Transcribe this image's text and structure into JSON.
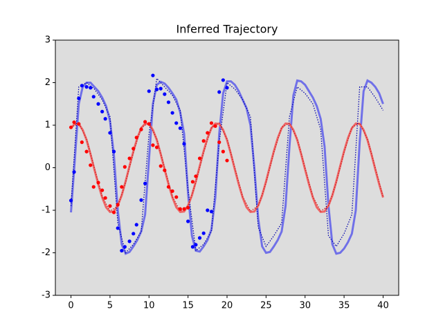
{
  "chart_data": {
    "type": "line",
    "title": "Inferred Trajectory",
    "xlim": [
      -2,
      42
    ],
    "ylim": [
      -3,
      3
    ],
    "xticks": [
      0,
      5,
      10,
      15,
      20,
      25,
      30,
      35,
      40
    ],
    "yticks": [
      -3,
      -2,
      -1,
      0,
      1,
      2,
      3
    ],
    "background": "#dddddd",
    "series": [
      {
        "style": "line",
        "color": "#7070e8",
        "x": [
          0,
          0.5,
          1,
          1.5,
          2,
          2.5,
          3,
          3.5,
          4,
          4.5,
          5,
          5.5,
          6,
          6.5,
          7,
          7.5,
          8,
          8.5,
          9,
          9.5,
          10,
          10.5,
          11,
          11.5,
          12,
          12.5,
          13,
          13.5,
          14,
          14.5,
          15,
          15.5,
          16,
          16.5,
          17,
          17.5,
          18,
          18.5,
          19,
          19.5,
          20,
          20.5,
          21,
          21.5,
          22,
          22.5,
          23,
          23.5,
          24,
          24.5,
          25,
          25.5,
          26,
          26.5,
          27,
          27.5,
          28,
          28.5,
          29,
          29.5,
          30,
          30.5,
          31,
          31.5,
          32,
          32.5,
          33,
          33.5,
          34,
          34.5,
          35,
          35.5,
          36,
          36.5,
          37,
          37.5,
          38,
          38.5,
          39,
          39.5,
          40
        ],
        "values": [
          -1.05,
          0.2,
          1.5,
          1.9,
          2.0,
          2.0,
          1.9,
          1.8,
          1.65,
          1.45,
          1.1,
          0.3,
          -1.0,
          -1.8,
          -2.02,
          -1.98,
          -1.85,
          -1.7,
          -1.5,
          -1.1,
          0.2,
          1.5,
          1.95,
          2.02,
          1.98,
          1.88,
          1.75,
          1.6,
          1.3,
          0.8,
          -0.6,
          -1.6,
          -1.95,
          -1.97,
          -1.85,
          -1.7,
          -1.45,
          -0.7,
          0.8,
          1.75,
          2.03,
          2.03,
          1.95,
          1.8,
          1.6,
          1.4,
          1.0,
          0.0,
          -1.2,
          -1.85,
          -2.0,
          -1.98,
          -1.85,
          -1.7,
          -1.5,
          -0.9,
          0.5,
          1.7,
          2.05,
          2.03,
          1.95,
          1.8,
          1.65,
          1.45,
          1.15,
          0.5,
          -0.9,
          -1.8,
          -2.02,
          -2.0,
          -1.9,
          -1.75,
          -1.55,
          -1.0,
          0.6,
          1.8,
          2.05,
          2.0,
          1.9,
          1.75,
          1.5
        ]
      },
      {
        "style": "line",
        "color": "#ee6666",
        "x": [
          0,
          0.5,
          1,
          1.5,
          2,
          2.5,
          3,
          3.5,
          4,
          4.5,
          5,
          5.5,
          6,
          6.5,
          7,
          7.5,
          8,
          8.5,
          9,
          9.5,
          10,
          10.5,
          11,
          11.5,
          12,
          12.5,
          13,
          13.5,
          14,
          14.5,
          15,
          15.5,
          16,
          16.5,
          17,
          17.5,
          18,
          18.5,
          19,
          19.5,
          20,
          20.5,
          21,
          21.5,
          22,
          22.5,
          23,
          23.5,
          24,
          24.5,
          25,
          25.5,
          26,
          26.5,
          27,
          27.5,
          28,
          28.5,
          29,
          29.5,
          30,
          30.5,
          31,
          31.5,
          32,
          32.5,
          33,
          33.5,
          34,
          34.5,
          35,
          35.5,
          36,
          36.5,
          37,
          37.5,
          38,
          38.5,
          39,
          39.5,
          40
        ],
        "values": [
          0.93,
          1.04,
          1.03,
          0.89,
          0.65,
          0.32,
          -0.04,
          -0.39,
          -0.7,
          -0.93,
          -1.04,
          -1.03,
          -0.89,
          -0.65,
          -0.32,
          0.04,
          0.39,
          0.7,
          0.93,
          1.04,
          1.03,
          0.89,
          0.65,
          0.32,
          -0.04,
          -0.39,
          -0.7,
          -0.93,
          -1.04,
          -1.03,
          -0.89,
          -0.65,
          -0.32,
          0.04,
          0.39,
          0.7,
          0.93,
          1.04,
          1.03,
          0.89,
          0.65,
          0.32,
          -0.04,
          -0.39,
          -0.7,
          -0.93,
          -1.04,
          -1.03,
          -0.89,
          -0.65,
          -0.32,
          0.04,
          0.39,
          0.7,
          0.93,
          1.04,
          1.03,
          0.89,
          0.65,
          0.32,
          -0.04,
          -0.39,
          -0.7,
          -0.93,
          -1.04,
          -1.03,
          -0.89,
          -0.65,
          -0.32,
          0.04,
          0.39,
          0.7,
          0.93,
          1.04,
          1.03,
          0.89,
          0.65,
          0.32,
          -0.04,
          -0.39,
          -0.7
        ]
      },
      {
        "style": "dotted",
        "color": "#0000aa",
        "x": [
          0,
          1,
          2,
          3,
          4,
          5,
          6,
          7,
          8,
          9,
          10,
          11,
          12,
          13,
          14,
          15,
          16,
          17,
          18,
          19,
          20,
          21,
          22,
          23,
          24,
          25,
          26,
          27,
          28,
          29,
          30,
          31,
          32,
          33,
          34,
          35,
          36,
          37,
          38,
          39,
          40
        ],
        "values": [
          -0.9,
          1.9,
          2.0,
          1.85,
          1.6,
          1.2,
          -1.3,
          -2.0,
          -1.8,
          -1.5,
          0.8,
          2.1,
          1.9,
          1.7,
          1.35,
          -0.5,
          -1.95,
          -1.8,
          -1.5,
          0.6,
          2.0,
          1.85,
          1.6,
          1.2,
          -1.4,
          -1.85,
          -1.6,
          -1.3,
          1.2,
          1.9,
          1.75,
          1.5,
          0.9,
          -1.6,
          -1.85,
          -1.55,
          -1.1,
          1.9,
          1.9,
          1.65,
          1.35
        ]
      },
      {
        "style": "dotted",
        "color": "#cc2222",
        "x": [
          0,
          1,
          2,
          3,
          4,
          5,
          6,
          7,
          8,
          9,
          10,
          11,
          12,
          13,
          14,
          15,
          16,
          17,
          18,
          19,
          20,
          21,
          22,
          23,
          24,
          25,
          26,
          27,
          28,
          29,
          30,
          31,
          32,
          33,
          34,
          35,
          36,
          37,
          38,
          39,
          40
        ],
        "values": [
          0.95,
          1.05,
          0.68,
          0,
          -0.68,
          -1.02,
          -0.9,
          -0.35,
          0.36,
          0.95,
          1.05,
          0.68,
          0,
          -0.68,
          -1.02,
          -0.9,
          -0.35,
          0.36,
          0.95,
          1.05,
          0.68,
          0,
          -0.68,
          -1.02,
          -0.9,
          -0.35,
          0.36,
          0.95,
          1.05,
          0.68,
          0,
          -0.68,
          -1.02,
          -0.9,
          -0.35,
          0.36,
          0.95,
          1.05,
          0.68,
          0,
          -0.68
        ]
      },
      {
        "style": "scatter",
        "color": "#0000ff",
        "x": [
          0,
          0.4,
          1.0,
          1.4,
          2.0,
          2.5,
          2.9,
          3.5,
          4.0,
          4.4,
          5.0,
          5.5,
          6.0,
          6.5,
          6.9,
          7.5,
          8.0,
          8.4,
          9.0,
          9.5,
          10.0,
          10.5,
          11.0,
          11.5,
          12.0,
          12.5,
          13.0,
          13.5,
          14.0,
          14.5,
          15.0,
          15.6,
          16.0,
          16.5,
          17.0,
          17.5,
          18.0,
          19.0,
          19.5,
          20.0
        ],
        "values": [
          -0.77,
          -0.1,
          1.63,
          1.93,
          1.9,
          1.88,
          1.67,
          1.5,
          1.32,
          1.15,
          0.82,
          0.38,
          -1.42,
          -1.95,
          -1.86,
          -1.73,
          -1.55,
          -1.34,
          -0.76,
          -0.37,
          1.8,
          2.17,
          1.84,
          1.86,
          1.73,
          1.54,
          1.29,
          1.05,
          0.93,
          0.56,
          -1.26,
          -1.86,
          -1.81,
          -1.65,
          -1.54,
          -1.0,
          -1.03,
          1.78,
          2.06,
          1.88
        ]
      },
      {
        "style": "scatter",
        "color": "#ff0000",
        "x": [
          0,
          0.4,
          1.0,
          1.4,
          2.0,
          2.5,
          2.9,
          3.5,
          4.0,
          4.4,
          5.0,
          5.5,
          6.0,
          6.5,
          6.9,
          7.5,
          8.0,
          8.4,
          9.0,
          9.5,
          10.0,
          10.5,
          11.0,
          11.5,
          12.0,
          12.5,
          13.0,
          13.5,
          14.0,
          14.5,
          15.0,
          15.6,
          16.0,
          16.5,
          17.0,
          17.5,
          18.0,
          18.5,
          19.0,
          19.5,
          20.0
        ],
        "values": [
          0.95,
          1.07,
          1.03,
          0.6,
          0.38,
          0.06,
          -0.45,
          -0.35,
          -0.53,
          -0.71,
          -0.9,
          -1.05,
          -0.87,
          -0.45,
          0.02,
          0.22,
          0.45,
          0.71,
          0.9,
          1.08,
          1.03,
          0.53,
          0.48,
          0.04,
          -0.06,
          -0.45,
          -0.55,
          -0.69,
          -0.97,
          -0.97,
          -0.94,
          -0.33,
          -0.2,
          0.22,
          0.63,
          0.82,
          1.05,
          0.98,
          0.6,
          0.38,
          0.17
        ]
      }
    ]
  }
}
